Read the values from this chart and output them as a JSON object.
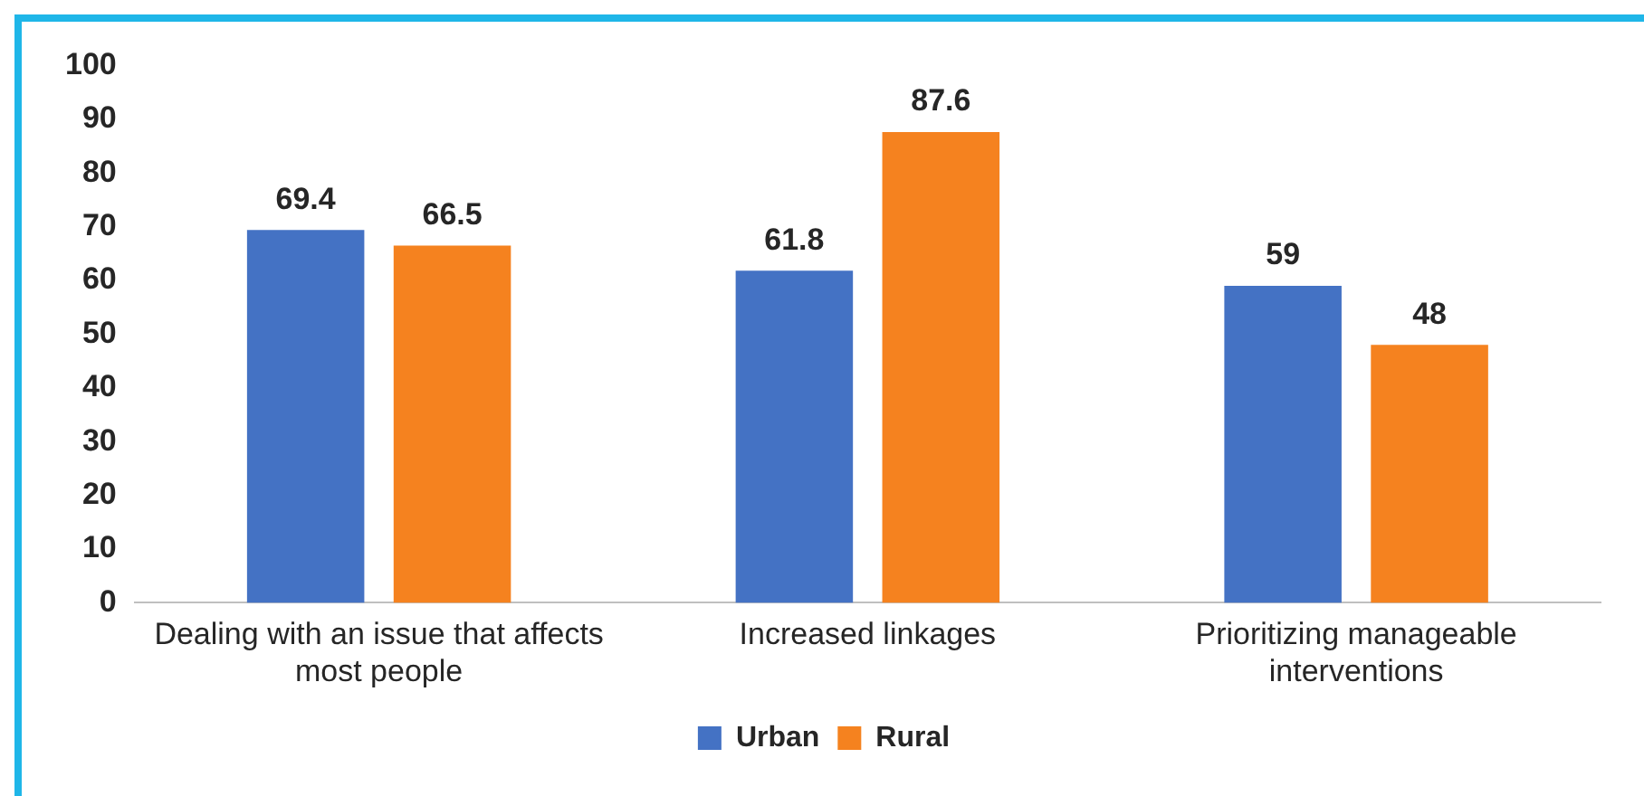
{
  "chart_data": {
    "type": "bar",
    "categories": [
      "Dealing with an issue that affects most people",
      "Increased linkages",
      "Prioritizing manageable interventions"
    ],
    "series": [
      {
        "name": "Urban",
        "color": "#4472c4",
        "values": [
          69.4,
          61.8,
          59
        ]
      },
      {
        "name": "Rural",
        "color": "#f5821f",
        "values": [
          66.5,
          87.6,
          48
        ]
      }
    ],
    "ylim": [
      0,
      100
    ],
    "yticks": [
      0,
      10,
      20,
      30,
      40,
      50,
      60,
      70,
      80,
      90,
      100
    ],
    "grid": false,
    "legend": "bottom",
    "data_labels": true
  }
}
